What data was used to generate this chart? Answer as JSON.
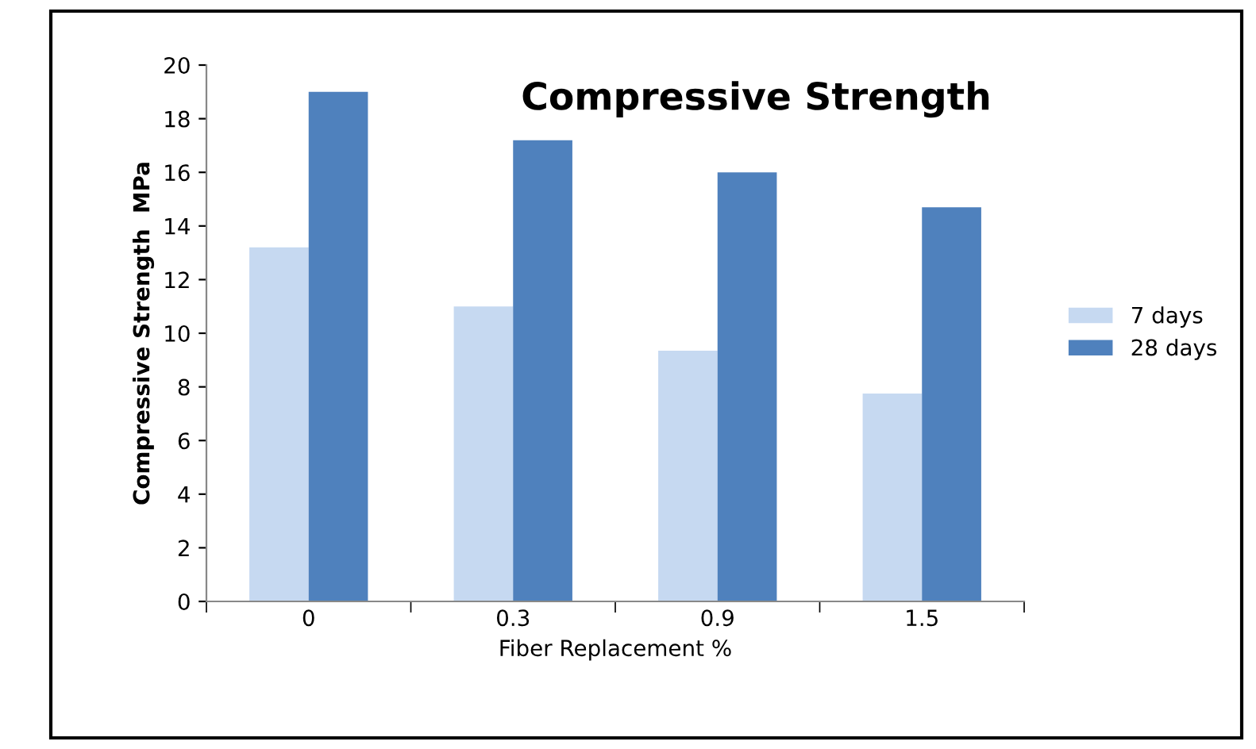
{
  "chart_data": {
    "type": "bar",
    "title": "Compressive Strength",
    "xlabel": "Fiber Replacement %",
    "ylabel": "Compressive Strength  MPa",
    "categories": [
      "0",
      "0.3",
      "0.9",
      "1.5"
    ],
    "series": [
      {
        "name": "7 days",
        "color": "#c6d9f1",
        "values": [
          13.2,
          11.0,
          9.35,
          7.75
        ]
      },
      {
        "name": "28 days",
        "color": "#4f81bd",
        "values": [
          19.0,
          17.2,
          16.0,
          14.7
        ]
      }
    ],
    "ylim": [
      0,
      20
    ],
    "yticks": [
      0,
      2,
      4,
      6,
      8,
      10,
      12,
      14,
      16,
      18,
      20
    ],
    "grid": false,
    "legend": "right"
  }
}
